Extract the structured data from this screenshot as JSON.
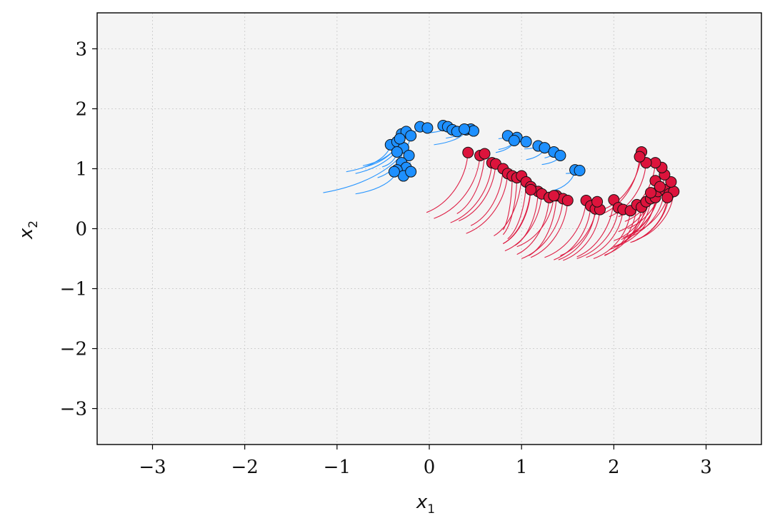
{
  "chart_data": {
    "type": "scatter",
    "title": "",
    "xlabel": "x",
    "xlabel_sub": "1",
    "ylabel": "x",
    "ylabel_sub": "2",
    "xlim": [
      -3.6,
      3.6
    ],
    "ylim": [
      -3.6,
      3.6
    ],
    "xticks": [
      -3,
      -2,
      -1,
      0,
      1,
      2,
      3
    ],
    "yticks": [
      -3,
      -2,
      -1,
      0,
      1,
      2,
      3
    ],
    "xtick_labels": [
      "−3",
      "−2",
      "−1",
      "0",
      "1",
      "2",
      "3"
    ],
    "ytick_labels": [
      "−3",
      "−2",
      "−1",
      "0",
      "1",
      "2",
      "3"
    ],
    "grid": true,
    "legend": "none",
    "series": [
      {
        "color": "#1E90FF",
        "trails": true,
        "points": [
          [
            -0.42,
            1.4
          ],
          [
            -0.35,
            1.45
          ],
          [
            -0.3,
            1.58
          ],
          [
            -0.25,
            1.62
          ],
          [
            -0.2,
            1.55
          ],
          [
            -0.28,
            1.35
          ],
          [
            -0.35,
            1.28
          ],
          [
            -0.22,
            1.22
          ],
          [
            -0.3,
            1.1
          ],
          [
            -0.25,
            1.02
          ],
          [
            -0.35,
            0.98
          ],
          [
            -0.28,
            0.88
          ],
          [
            -0.38,
            0.95
          ],
          [
            -0.2,
            0.95
          ],
          [
            -0.32,
            1.5
          ],
          [
            -0.1,
            1.7
          ],
          [
            -0.02,
            1.68
          ],
          [
            0.15,
            1.72
          ],
          [
            0.2,
            1.7
          ],
          [
            0.25,
            1.65
          ],
          [
            0.3,
            1.62
          ],
          [
            0.4,
            1.65
          ],
          [
            0.45,
            1.66
          ],
          [
            0.48,
            1.63
          ],
          [
            0.38,
            1.66
          ],
          [
            0.85,
            1.55
          ],
          [
            0.95,
            1.52
          ],
          [
            1.05,
            1.45
          ],
          [
            1.18,
            1.38
          ],
          [
            1.25,
            1.35
          ],
          [
            1.35,
            1.28
          ],
          [
            1.42,
            1.22
          ],
          [
            1.58,
            0.98
          ],
          [
            1.63,
            0.97
          ],
          [
            0.92,
            1.47
          ]
        ],
        "trail_dx": [
          0.48,
          -0.04,
          0.4,
          0.55,
          0.95,
          0.28,
          0.16,
          0.1,
          0.05,
          0.05,
          0.45,
          0.0,
          -0.18,
          0.1,
          0.4,
          0.1,
          0.0,
          -0.05,
          0.2,
          0.0,
          -0.1,
          0.35,
          0.05,
          0.0,
          0.2,
          0.1,
          0.2,
          0.0,
          0.15,
          0.2,
          0.1,
          0.2,
          0.25,
          0.15,
          0.2
        ],
        "trail_dy": [
          0.45,
          0.28,
          0.55,
          0.7,
          0.95,
          0.5,
          0.25,
          0.1,
          -0.05,
          -0.1,
          0.4,
          -0.2,
          -0.15,
          -0.1,
          0.45,
          0.1,
          0.0,
          -0.05,
          0.1,
          0.0,
          -0.1,
          0.25,
          0.0,
          0.0,
          0.15,
          0.05,
          0.2,
          0.0,
          0.05,
          0.2,
          0.1,
          0.15,
          0.35,
          0.05,
          0.2
        ]
      },
      {
        "color": "#DC143C",
        "trails": true,
        "points": [
          [
            0.42,
            1.27
          ],
          [
            0.55,
            1.22
          ],
          [
            0.6,
            1.25
          ],
          [
            0.68,
            1.1
          ],
          [
            0.72,
            1.08
          ],
          [
            0.8,
            1.0
          ],
          [
            0.85,
            0.92
          ],
          [
            0.9,
            0.88
          ],
          [
            0.95,
            0.85
          ],
          [
            1.0,
            0.88
          ],
          [
            1.05,
            0.78
          ],
          [
            1.1,
            0.7
          ],
          [
            1.18,
            0.62
          ],
          [
            1.22,
            0.58
          ],
          [
            1.3,
            0.52
          ],
          [
            1.38,
            0.55
          ],
          [
            1.45,
            0.5
          ],
          [
            1.5,
            0.47
          ],
          [
            1.7,
            0.47
          ],
          [
            1.75,
            0.38
          ],
          [
            1.8,
            0.33
          ],
          [
            1.85,
            0.32
          ],
          [
            1.82,
            0.45
          ],
          [
            2.0,
            0.48
          ],
          [
            2.05,
            0.35
          ],
          [
            2.1,
            0.32
          ],
          [
            2.18,
            0.3
          ],
          [
            2.25,
            0.4
          ],
          [
            2.3,
            0.36
          ],
          [
            2.35,
            0.45
          ],
          [
            2.4,
            0.5
          ],
          [
            2.45,
            0.52
          ],
          [
            2.48,
            0.62
          ],
          [
            2.55,
            0.65
          ],
          [
            2.6,
            0.58
          ],
          [
            2.65,
            0.62
          ],
          [
            2.62,
            0.78
          ],
          [
            2.55,
            0.9
          ],
          [
            2.52,
            1.02
          ],
          [
            2.45,
            1.1
          ],
          [
            2.35,
            1.1
          ],
          [
            2.3,
            1.28
          ],
          [
            2.45,
            0.8
          ],
          [
            2.5,
            0.7
          ],
          [
            2.4,
            0.6
          ],
          [
            2.58,
            0.52
          ],
          [
            1.1,
            0.65
          ],
          [
            1.35,
            0.55
          ],
          [
            2.28,
            1.2
          ]
        ],
        "trail_dx": [
          0.45,
          0.5,
          0.3,
          0.45,
          0.4,
          0.35,
          0.45,
          0.1,
          0.15,
          0.3,
          0.2,
          0.3,
          0.25,
          0.4,
          0.35,
          0.3,
          0.45,
          0.4,
          0.45,
          0.4,
          0.4,
          0.4,
          0.4,
          0.4,
          0.45,
          0.4,
          0.4,
          0.35,
          0.4,
          0.4,
          0.4,
          0.4,
          0.4,
          0.4,
          0.4,
          0.4,
          0.4,
          0.4,
          0.4,
          0.4,
          0.4,
          0.4,
          0.4,
          0.4,
          0.4,
          0.4,
          0.3,
          0.4,
          0.4
        ],
        "trail_dy": [
          1.0,
          1.05,
          1.0,
          1.0,
          0.95,
          0.95,
          1.0,
          0.9,
          0.95,
          1.0,
          0.95,
          0.95,
          0.9,
          0.95,
          0.95,
          1.0,
          1.0,
          0.95,
          0.95,
          0.9,
          0.85,
          0.85,
          0.9,
          0.95,
          0.85,
          0.8,
          0.8,
          0.85,
          0.8,
          0.8,
          0.8,
          0.8,
          0.8,
          0.8,
          0.8,
          0.8,
          0.85,
          0.9,
          0.9,
          0.9,
          0.9,
          0.95,
          0.85,
          0.85,
          0.8,
          0.75,
          0.9,
          0.85,
          0.95
        ]
      }
    ]
  }
}
